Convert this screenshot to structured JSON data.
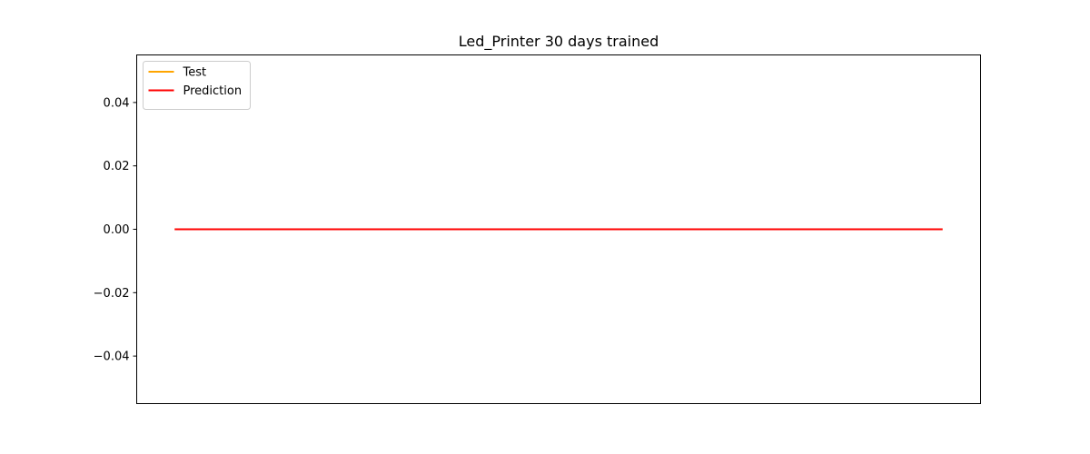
{
  "chart_data": {
    "type": "line",
    "title": "Led_Printer 30 days trained",
    "xlabel": "",
    "ylabel": "",
    "x": [
      0,
      1,
      2,
      3,
      4,
      5,
      6,
      7,
      8,
      9,
      10,
      11,
      12,
      13,
      14,
      15,
      16,
      17,
      18,
      19,
      20,
      21,
      22,
      23,
      24,
      25,
      26,
      27,
      28,
      29
    ],
    "ylim": [
      -0.055,
      0.055
    ],
    "yticks": [
      0.04,
      0.02,
      0.0,
      -0.02,
      -0.04
    ],
    "ytick_labels": [
      "0.04",
      "0.02",
      "0.00",
      "−0.02",
      "−0.04"
    ],
    "xticks_visible": false,
    "grid": false,
    "legend_position": "top-left",
    "series": [
      {
        "name": "Test",
        "color": "#ffa500",
        "values": [
          0,
          0,
          0,
          0,
          0,
          0,
          0,
          0,
          0,
          0,
          0,
          0,
          0,
          0,
          0,
          0,
          0,
          0,
          0,
          0,
          0,
          0,
          0,
          0,
          0,
          0,
          0,
          0,
          0,
          0
        ]
      },
      {
        "name": "Prediction",
        "color": "#ff0000",
        "values": [
          0,
          0,
          0,
          0,
          0,
          0,
          0,
          0,
          0,
          0,
          0,
          0,
          0,
          0,
          0,
          0,
          0,
          0,
          0,
          0,
          0,
          0,
          0,
          0,
          0,
          0,
          0,
          0,
          0,
          0
        ]
      }
    ]
  }
}
